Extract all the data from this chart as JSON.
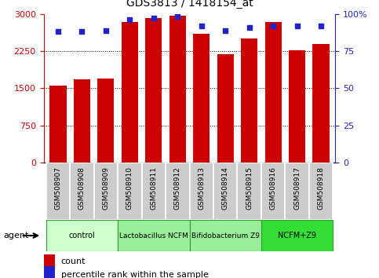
{
  "title": "GDS3813 / 1418154_at",
  "samples": [
    "GSM508907",
    "GSM508908",
    "GSM508909",
    "GSM508910",
    "GSM508911",
    "GSM508912",
    "GSM508913",
    "GSM508914",
    "GSM508915",
    "GSM508916",
    "GSM508917",
    "GSM508918"
  ],
  "counts": [
    1560,
    1680,
    1700,
    2840,
    2920,
    2970,
    2600,
    2190,
    2500,
    2840,
    2270,
    2390
  ],
  "percentile_ranks": [
    88,
    88,
    89,
    96,
    97,
    98,
    92,
    89,
    91,
    92,
    92,
    92
  ],
  "bar_color": "#cc0000",
  "dot_color": "#2222cc",
  "ylim_left": [
    0,
    3000
  ],
  "ylim_right": [
    0,
    100
  ],
  "yticks_left": [
    0,
    750,
    1500,
    2250,
    3000
  ],
  "ytick_labels_left": [
    "0",
    "750",
    "1500",
    "2250",
    "3000"
  ],
  "yticks_right": [
    0,
    25,
    50,
    75,
    100
  ],
  "ytick_labels_right": [
    "0",
    "25",
    "50",
    "75",
    "100%"
  ],
  "groups": [
    {
      "label": "control",
      "start": 0,
      "end": 3,
      "color": "#ccffcc"
    },
    {
      "label": "Lactobacillus NCFM",
      "start": 3,
      "end": 6,
      "color": "#99ee99"
    },
    {
      "label": "Bifidobacterium Z9",
      "start": 6,
      "end": 9,
      "color": "#99ee99"
    },
    {
      "label": "NCFM+Z9",
      "start": 9,
      "end": 12,
      "color": "#33dd33"
    }
  ],
  "agent_label": "agent",
  "legend_count": "count",
  "legend_percentile": "percentile rank within the sample",
  "left_axis_color": "#cc0000",
  "right_axis_color": "#2222cc",
  "xtick_bg": "#cccccc",
  "xtick_sep": "#ffffff",
  "bar_width": 0.7
}
